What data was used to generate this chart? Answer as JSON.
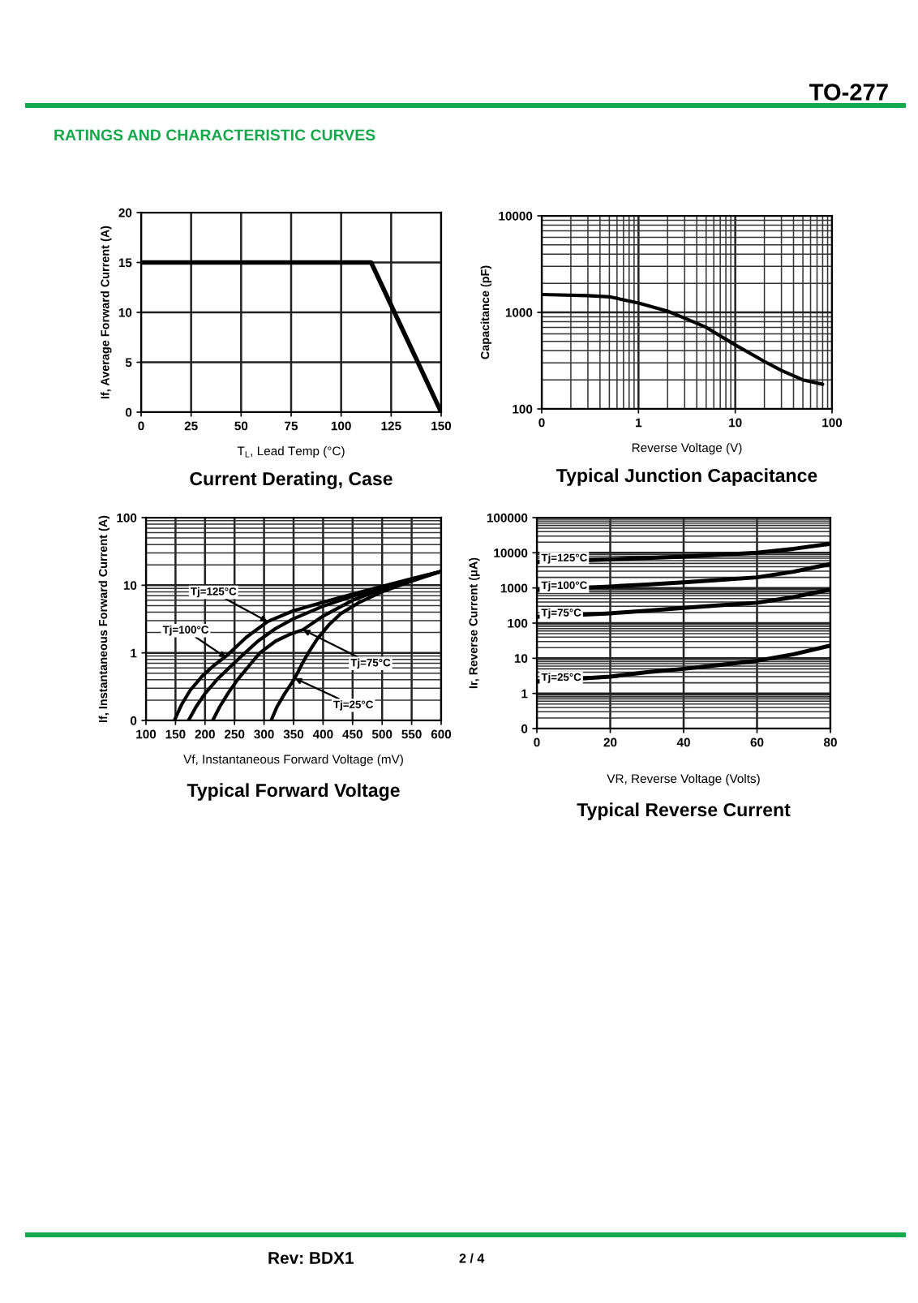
{
  "chart_data": [
    {
      "type": "other",
      "title": "RATINGS AND CHARACTERISTIC CURVES",
      "annotations": [
        "TO-277"
      ]
    },
    {
      "type": "line",
      "title": "Current Derating, Case",
      "xlabel": "T$_{L}$, Lead Temp (°C)",
      "ylabel": "If, Average Forward Current (A)",
      "x": [
        0,
        115,
        150
      ],
      "series": [
        {
          "color": "#000000",
          "values": [
            15,
            15,
            0
          ]
        }
      ],
      "xlim": [
        0,
        150
      ],
      "xticks": [
        0,
        25,
        50,
        75,
        100,
        125,
        150
      ],
      "ylim": [
        0,
        20
      ],
      "yticks": [
        0,
        5,
        10,
        15,
        20
      ],
      "grid": true
    },
    {
      "type": "line",
      "title": "Typical Junction Capacitance",
      "xlabel": "Reverse Voltage (V)",
      "ylabel": "Capacitance (pF)",
      "log": "xy",
      "x": [
        0.1,
        0.3,
        0.5,
        1,
        2,
        3,
        5,
        10,
        20,
        30,
        50,
        80
      ],
      "series": [
        {
          "color": "#000000",
          "values": [
            1530,
            1490,
            1450,
            1250,
            1030,
            870,
            700,
            460,
            310,
            250,
            200,
            180
          ]
        }
      ],
      "xlim": [
        0.1,
        100
      ],
      "xticks": [
        {
          "value": 0.1,
          "label": "0"
        },
        1,
        10,
        100
      ],
      "ylim": [
        100,
        10000
      ],
      "yticks": [
        100,
        1000,
        10000
      ],
      "grid": true
    },
    {
      "type": "line",
      "title": "Typical Forward Voltage",
      "xlabel": "Vf, Instantaneous Forward Voltage (mV)",
      "ylabel": "If, Instantaneous Forward Current (A)",
      "log": "y",
      "series": [
        {
          "color": "#000000",
          "x": [
            148,
            160,
            175,
            195,
            215,
            238,
            270,
            306,
            350,
            400,
            450,
            500,
            550,
            600
          ],
          "values": [
            0.1,
            0.17,
            0.28,
            0.45,
            0.65,
            0.93,
            1.7,
            2.9,
            4.2,
            5.6,
            7.4,
            9.6,
            12.5,
            16
          ]
        },
        {
          "color": "#000000",
          "x": [
            172,
            185,
            200,
            220,
            245,
            265,
            290,
            320,
            350,
            400,
            450,
            500,
            550,
            600
          ],
          "values": [
            0.1,
            0.16,
            0.25,
            0.4,
            0.65,
            0.95,
            1.5,
            2.3,
            3.2,
            4.9,
            6.9,
            9.2,
            12.2,
            16
          ]
        },
        {
          "color": "#000000",
          "x": [
            213,
            225,
            240,
            255,
            275,
            293,
            320,
            345,
            366,
            400,
            450,
            500,
            550,
            600
          ],
          "values": [
            0.1,
            0.16,
            0.26,
            0.4,
            0.65,
            1.0,
            1.5,
            1.9,
            2.2,
            3.5,
            6.0,
            8.8,
            12,
            16
          ]
        },
        {
          "color": "#000000",
          "x": [
            312,
            322,
            335,
            352,
            365,
            375,
            390,
            410,
            430,
            460,
            500,
            550,
            600
          ],
          "values": [
            0.1,
            0.16,
            0.25,
            0.42,
            0.7,
            1.0,
            1.6,
            2.6,
            3.8,
            5.5,
            8.0,
            11.5,
            16
          ]
        }
      ],
      "annotations": [
        {
          "text": "Tj=125°C",
          "x": 306,
          "y": 2.9
        },
        {
          "text": "Tj=100°C",
          "x": 236,
          "y": 0.85
        },
        {
          "text": "Tj=75°C",
          "x": 366,
          "y": 2.2
        },
        {
          "text": "Tj=25°C",
          "x": 352,
          "y": 0.42
        }
      ],
      "xlim": [
        100,
        600
      ],
      "xticks": [
        100,
        150,
        200,
        250,
        300,
        350,
        400,
        450,
        500,
        550,
        600
      ],
      "ylim": [
        0.1,
        100
      ],
      "yticks": [
        {
          "value": 0.1,
          "label": "0"
        },
        1,
        10,
        100
      ],
      "grid": true
    },
    {
      "type": "line",
      "title": "Typical Reverse Current",
      "xlabel": "VR, Reverse Voltage (Volts)",
      "ylabel": "Ir, Reverse Current (μA)",
      "log": "y",
      "x": [
        0,
        20,
        30,
        40,
        50,
        60,
        70,
        80
      ],
      "series": [
        {
          "name": "Tj=125°C",
          "color": "#000000",
          "values": [
            5500,
            6500,
            7100,
            7800,
            8800,
            10000,
            13000,
            18000
          ]
        },
        {
          "name": "Tj=100°C",
          "color": "#000000",
          "values": [
            900,
            1100,
            1250,
            1450,
            1700,
            2000,
            2900,
            4800
          ]
        },
        {
          "name": "Tj=75°C",
          "color": "#000000",
          "values": [
            150,
            190,
            225,
            270,
            320,
            380,
            550,
            900
          ]
        },
        {
          "name": "Tj=25°C",
          "color": "#000000",
          "values": [
            2.2,
            3.0,
            4.0,
            5.0,
            6.5,
            8.5,
            13,
            23
          ]
        }
      ],
      "xlim": [
        0,
        80
      ],
      "xticks": [
        0,
        20,
        40,
        60,
        80
      ],
      "ylim": [
        0.1,
        100000
      ],
      "yticks": [
        {
          "value": 0.1,
          "label": "0"
        },
        1,
        10,
        100,
        1000,
        10000,
        100000
      ],
      "grid": true
    },
    {
      "type": "other",
      "annotations": [
        "Rev: BDX1",
        "2 / 4"
      ]
    }
  ]
}
